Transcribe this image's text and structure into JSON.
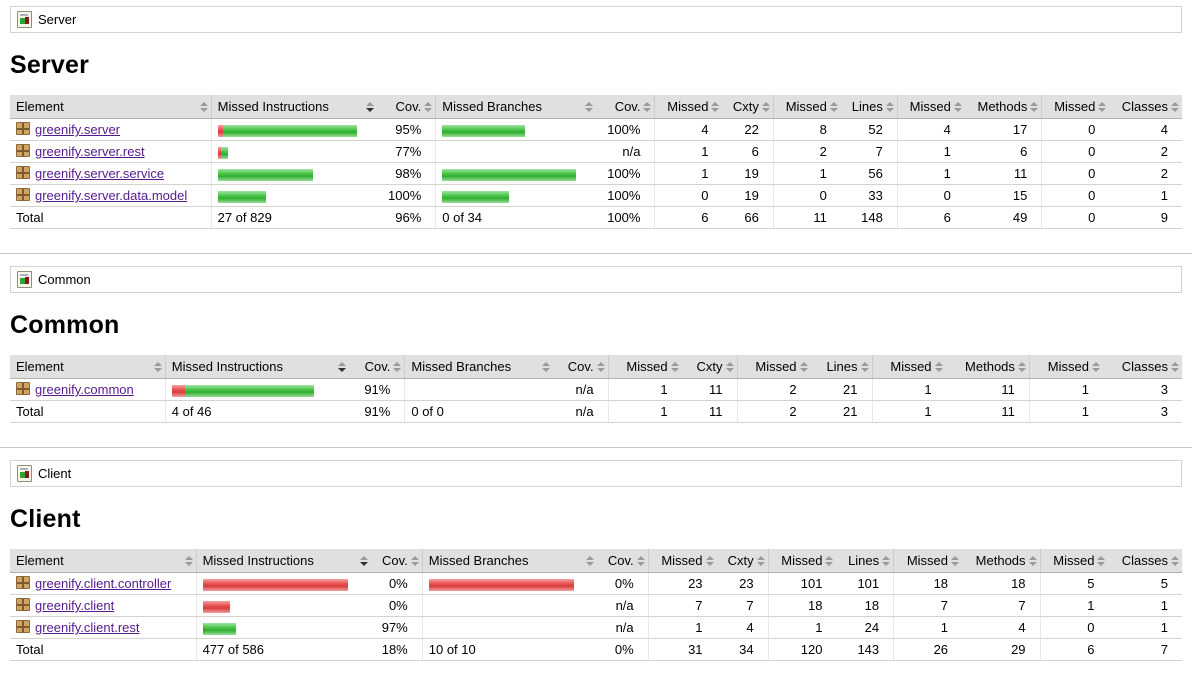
{
  "report": {
    "type": "coverage-report",
    "sorted_column_index": 1,
    "sort_direction": "desc"
  },
  "colors": {
    "bar_covered_green": "#3cb83c",
    "bar_missed_red": "#e04848",
    "link_purple": "#551a8b",
    "header_background": "#e0e0e0",
    "row_border": "#d6d3ce",
    "package_icon_tan": "#cfa567",
    "group_icon_green": "#2ea52e",
    "group_icon_red": "#8c1616"
  },
  "columns": [
    {
      "label": "Element",
      "kind": "element"
    },
    {
      "label": "Missed Instructions",
      "kind": "bar"
    },
    {
      "label": "Cov.",
      "kind": "ctr2"
    },
    {
      "label": "Missed Branches",
      "kind": "bar"
    },
    {
      "label": "Cov.",
      "kind": "ctr2"
    },
    {
      "label": "Missed",
      "kind": "ctr1"
    },
    {
      "label": "Cxty",
      "kind": "ctr2"
    },
    {
      "label": "Missed",
      "kind": "ctr1"
    },
    {
      "label": "Lines",
      "kind": "ctr2"
    },
    {
      "label": "Missed",
      "kind": "ctr1"
    },
    {
      "label": "Methods",
      "kind": "ctr2"
    },
    {
      "label": "Missed",
      "kind": "ctr1"
    },
    {
      "label": "Classes",
      "kind": "ctr2"
    }
  ],
  "sections": [
    {
      "breadcrumb": "Server",
      "heading": "Server",
      "rows": [
        {
          "element": "greenify.server",
          "instr_bar": [
            5,
            134
          ],
          "instr_cov": "95%",
          "branch_bar": [
            0,
            83
          ],
          "branch_cov": "100%",
          "counts": [
            4,
            22,
            8,
            52,
            4,
            17,
            0,
            4
          ]
        },
        {
          "element": "greenify.server.rest",
          "instr_bar": [
            3,
            7
          ],
          "instr_cov": "77%",
          "branch_bar": [
            0,
            0
          ],
          "branch_cov": "n/a",
          "counts": [
            1,
            6,
            2,
            7,
            1,
            6,
            0,
            2
          ]
        },
        {
          "element": "greenify.server.service",
          "instr_bar": [
            0,
            95
          ],
          "instr_cov": "98%",
          "branch_bar": [
            0,
            134
          ],
          "branch_cov": "100%",
          "counts": [
            1,
            19,
            1,
            56,
            1,
            11,
            0,
            2
          ]
        },
        {
          "element": "greenify.server.data.model",
          "instr_bar": [
            0,
            48
          ],
          "instr_cov": "100%",
          "branch_bar": [
            0,
            67
          ],
          "branch_cov": "100%",
          "counts": [
            0,
            19,
            0,
            33,
            0,
            15,
            0,
            1
          ]
        }
      ],
      "total": {
        "label": "Total",
        "instr": "27 of 829",
        "instr_cov": "96%",
        "branch": "0 of 34",
        "branch_cov": "100%",
        "counts": [
          6,
          66,
          11,
          148,
          6,
          49,
          0,
          9
        ]
      }
    },
    {
      "breadcrumb": "Common",
      "heading": "Common",
      "rows": [
        {
          "element": "greenify.common",
          "instr_bar": [
            13,
            129
          ],
          "instr_cov": "91%",
          "branch_bar": [
            0,
            0
          ],
          "branch_cov": "n/a",
          "counts": [
            1,
            11,
            2,
            21,
            1,
            11,
            1,
            3
          ]
        }
      ],
      "total": {
        "label": "Total",
        "instr": "4 of 46",
        "instr_cov": "91%",
        "branch": "0 of 0",
        "branch_cov": "n/a",
        "counts": [
          1,
          11,
          2,
          21,
          1,
          11,
          1,
          3
        ]
      }
    },
    {
      "breadcrumb": "Client",
      "heading": "Client",
      "rows": [
        {
          "element": "greenify.client.controller",
          "instr_bar": [
            145,
            0
          ],
          "instr_cov": "0%",
          "branch_bar": [
            145,
            0
          ],
          "branch_cov": "0%",
          "counts": [
            23,
            23,
            101,
            101,
            18,
            18,
            5,
            5
          ]
        },
        {
          "element": "greenify.client",
          "instr_bar": [
            27,
            0
          ],
          "instr_cov": "0%",
          "branch_bar": [
            0,
            0
          ],
          "branch_cov": "n/a",
          "counts": [
            7,
            7,
            18,
            18,
            7,
            7,
            1,
            1
          ]
        },
        {
          "element": "greenify.client.rest",
          "instr_bar": [
            1,
            32
          ],
          "instr_cov": "97%",
          "branch_bar": [
            0,
            0
          ],
          "branch_cov": "n/a",
          "counts": [
            1,
            4,
            1,
            24,
            1,
            4,
            0,
            1
          ]
        }
      ],
      "total": {
        "label": "Total",
        "instr": "477 of 586",
        "instr_cov": "18%",
        "branch": "10 of 10",
        "branch_cov": "0%",
        "counts": [
          31,
          34,
          120,
          143,
          26,
          29,
          6,
          7
        ]
      }
    }
  ]
}
